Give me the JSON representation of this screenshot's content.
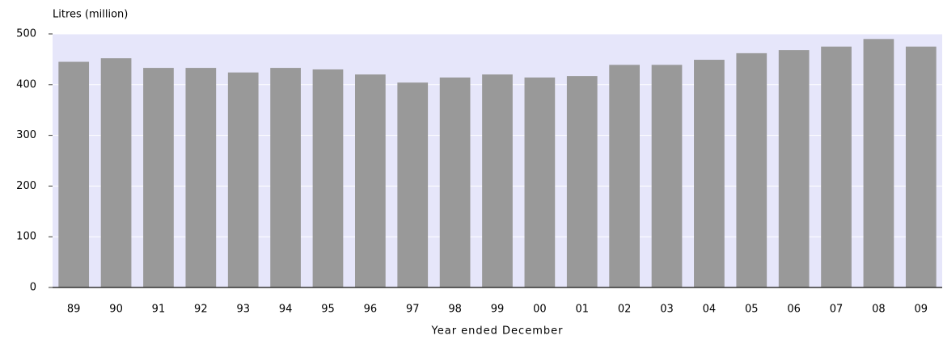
{
  "chart_data": {
    "type": "bar",
    "y_axis_title": "Litres (million)",
    "x_axis_title": "Year ended December",
    "categories": [
      "89",
      "90",
      "91",
      "92",
      "93",
      "94",
      "95",
      "96",
      "97",
      "98",
      "99",
      "00",
      "01",
      "02",
      "03",
      "04",
      "05",
      "06",
      "07",
      "08",
      "09"
    ],
    "values": [
      445,
      452,
      433,
      433,
      424,
      433,
      430,
      420,
      404,
      414,
      420,
      414,
      417,
      439,
      439,
      449,
      462,
      468,
      475,
      490,
      475
    ],
    "color": "#999999",
    "background": "#e6e6fa",
    "ylim": [
      0,
      500
    ],
    "yticks": [
      0,
      100,
      200,
      300,
      400,
      500
    ],
    "grid": true
  }
}
